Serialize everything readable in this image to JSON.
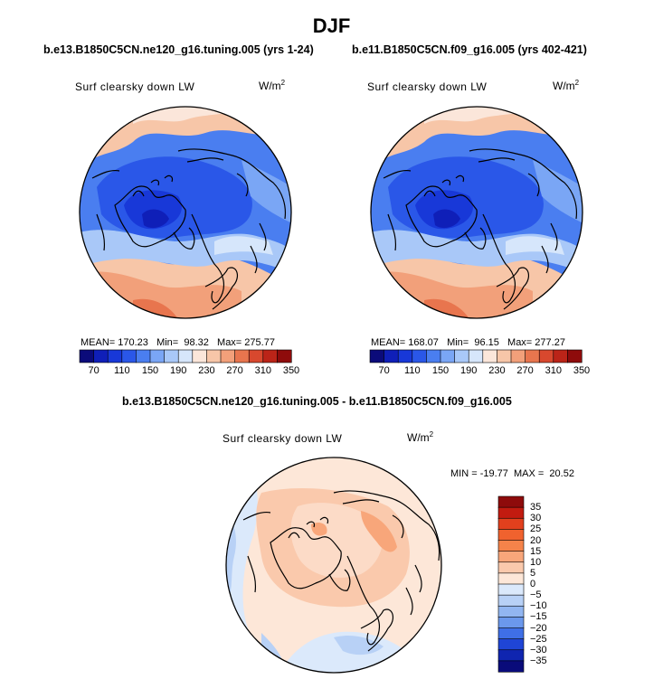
{
  "figure": {
    "title": "DJF"
  },
  "panels": [
    {
      "case_title": "b.e13.B1850C5CN.ne120_g16.tuning.005 (yrs 1-24)",
      "variable": "Surf clearsky down LW",
      "units": "W/m",
      "units_exp": "2",
      "stats": "MEAN= 170.23   Min=  98.32   Max= 275.77",
      "colorbar_labels": [
        "70",
        "110",
        "150",
        "190",
        "230",
        "270",
        "310",
        "350"
      ]
    },
    {
      "case_title": "b.e11.B1850C5CN.f09_g16.005 (yrs 402-421)",
      "variable": "Surf clearsky down LW",
      "units": "W/m",
      "units_exp": "2",
      "stats": "MEAN= 168.07   Min=  96.15   Max= 277.27",
      "colorbar_labels": [
        "70",
        "110",
        "150",
        "190",
        "230",
        "270",
        "310",
        "350"
      ]
    },
    {
      "case_title": "b.e13.B1850C5CN.ne120_g16.tuning.005 - b.e11.B1850C5CN.f09_g16.005",
      "variable": "Surf clearsky down LW",
      "units": "W/m",
      "units_exp": "2",
      "stats": "MIN = -19.77  MAX =  20.52",
      "colorbar_labels": [
        "35",
        "30",
        "25",
        "20",
        "15",
        "10",
        "5",
        "0",
        "−5",
        "−10",
        "−15",
        "−20",
        "−25",
        "−30",
        "−35"
      ]
    }
  ],
  "colors": {
    "abs_scale": [
      "#0b0b7a",
      "#0f1fb8",
      "#1838d8",
      "#2a57e8",
      "#4a7ef0",
      "#7aa6f5",
      "#a9c8f8",
      "#d6e6fb",
      "#fbe6da",
      "#f7c6a8",
      "#f2a07a",
      "#e8754e",
      "#d8482e",
      "#bb2418",
      "#8e0b0b"
    ],
    "diff_scale": [
      "#8e0b0b",
      "#c21b10",
      "#e2401d",
      "#f0622e",
      "#f5834a",
      "#f8a67a",
      "#fac9ac",
      "#fde7d8",
      "#dbe9fb",
      "#b8d1f6",
      "#92b6f1",
      "#6b98ec",
      "#3f6fe6",
      "#1f45d6",
      "#0f25b0",
      "#090b7a"
    ]
  }
}
